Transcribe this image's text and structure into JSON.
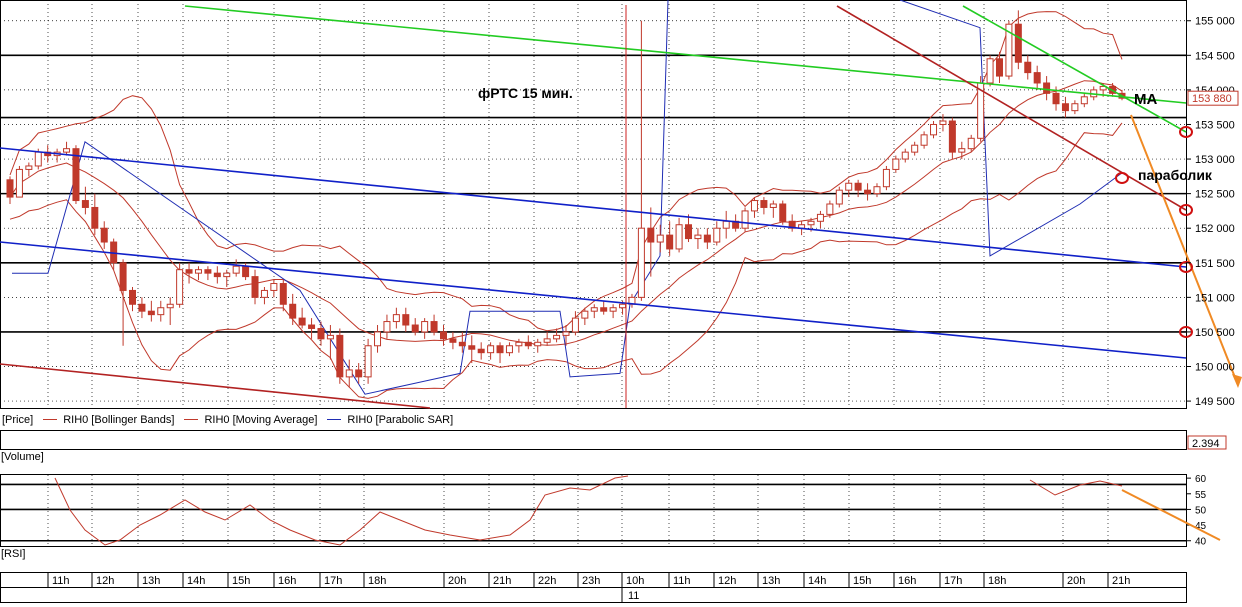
{
  "chart_data": {
    "type": "candlestick",
    "instrument": "RIH0",
    "price_axis": {
      "ticks": [
        "155 000",
        "154 500",
        "154 000",
        "153 500",
        "153 000",
        "152 500",
        "152 000",
        "151 500",
        "151 000",
        "150 500",
        "150 000",
        "149 500"
      ],
      "ylim": [
        149400,
        155300
      ]
    },
    "current_price": "153 880",
    "volume_value": "2.394",
    "rsi_axis": {
      "ticks": [
        "60",
        "55",
        "50",
        "45",
        "40"
      ],
      "ylim": [
        38,
        61
      ]
    },
    "annotations": {
      "title": "фРТС   15 мин.",
      "ma": "МА",
      "parabolic": "параболик"
    },
    "legend": {
      "price": "[Price]",
      "bollinger": "RIH0 [Bollinger Bands]",
      "ma": "RIH0 [Moving Average]",
      "sar": "RIH0 [Parabolic SAR]"
    },
    "panels": {
      "volume": "[Volume]",
      "rsi": "[RSI]"
    },
    "time_axis": {
      "hours": [
        "11h",
        "12h",
        "13h",
        "14h",
        "15h",
        "16h",
        "17h",
        "18h",
        "20h",
        "21h",
        "22h",
        "23h",
        "10h",
        "11h",
        "12h",
        "13h",
        "14h",
        "15h",
        "16h",
        "17h",
        "18h",
        "20h",
        "21h"
      ],
      "day_label": "11"
    },
    "horizontal_levels": [
      154500,
      153600,
      152500,
      151500,
      150500,
      153500
    ],
    "candles": [
      [
        152700,
        152750,
        152350,
        152450
      ],
      [
        152450,
        152900,
        152450,
        152850
      ],
      [
        152850,
        152950,
        152750,
        152900
      ],
      [
        152900,
        153150,
        152850,
        153100
      ],
      [
        153100,
        153200,
        152950,
        153050
      ],
      [
        153050,
        153150,
        152950,
        153100
      ],
      [
        153100,
        153250,
        153050,
        153150
      ],
      [
        153150,
        153200,
        152350,
        152400
      ],
      [
        152400,
        152600,
        152200,
        152300
      ],
      [
        152300,
        152500,
        151900,
        152000
      ],
      [
        152000,
        152100,
        151700,
        151800
      ],
      [
        151800,
        151850,
        151400,
        151500
      ],
      [
        151500,
        151550,
        150300,
        151100
      ],
      [
        151100,
        151150,
        150800,
        150900
      ],
      [
        150900,
        151000,
        150700,
        150800
      ],
      [
        150800,
        150950,
        150650,
        150750
      ],
      [
        150750,
        150950,
        150650,
        150850
      ],
      [
        150850,
        151000,
        150600,
        150900
      ],
      [
        150900,
        151500,
        150850,
        151400
      ],
      [
        151400,
        151500,
        151200,
        151350
      ],
      [
        151350,
        151450,
        151250,
        151400
      ],
      [
        151400,
        151450,
        151250,
        151350
      ],
      [
        151350,
        151450,
        151200,
        151300
      ],
      [
        151300,
        151400,
        151150,
        151350
      ],
      [
        151350,
        151550,
        151300,
        151450
      ],
      [
        151450,
        151500,
        151250,
        151300
      ],
      [
        151300,
        151400,
        150900,
        151000
      ],
      [
        151000,
        151150,
        150900,
        151100
      ],
      [
        151100,
        151250,
        151000,
        151200
      ],
      [
        151200,
        151250,
        150800,
        150900
      ],
      [
        150900,
        151050,
        150600,
        150700
      ],
      [
        150700,
        150850,
        150550,
        150600
      ],
      [
        150600,
        150700,
        150400,
        150550
      ],
      [
        150550,
        150650,
        150300,
        150400
      ],
      [
        150400,
        150600,
        150100,
        150450
      ],
      [
        150450,
        150550,
        149750,
        149850
      ],
      [
        149850,
        150100,
        149700,
        149950
      ],
      [
        149950,
        150050,
        149750,
        149850
      ],
      [
        149850,
        150400,
        149750,
        150300
      ],
      [
        150300,
        150600,
        150200,
        150500
      ],
      [
        150500,
        150750,
        150400,
        150650
      ],
      [
        150650,
        150850,
        150550,
        150750
      ],
      [
        150750,
        150850,
        150500,
        150600
      ],
      [
        150600,
        150700,
        150450,
        150500
      ],
      [
        150500,
        150700,
        150400,
        150650
      ],
      [
        150650,
        150750,
        150450,
        150500
      ],
      [
        150500,
        150600,
        150300,
        150400
      ],
      [
        150400,
        150500,
        150250,
        150350
      ],
      [
        150350,
        150500,
        150200,
        150300
      ],
      [
        150300,
        150450,
        150050,
        150250
      ],
      [
        150250,
        150350,
        150100,
        150200
      ],
      [
        150200,
        150350,
        150100,
        150300
      ],
      [
        150300,
        150350,
        150050,
        150200
      ],
      [
        150200,
        150350,
        150150,
        150300
      ],
      [
        150300,
        150400,
        150200,
        150350
      ],
      [
        150350,
        150450,
        150250,
        150300
      ],
      [
        150300,
        150400,
        150200,
        150350
      ],
      [
        150350,
        150500,
        150300,
        150400
      ],
      [
        150400,
        150550,
        150350,
        150450
      ],
      [
        150450,
        150600,
        150300,
        150500
      ],
      [
        150500,
        150800,
        150450,
        150700
      ],
      [
        150700,
        150850,
        150600,
        150800
      ],
      [
        150800,
        150900,
        150700,
        150850
      ],
      [
        150850,
        150950,
        150750,
        150800
      ],
      [
        150800,
        150900,
        150700,
        150850
      ],
      [
        150850,
        150950,
        150750,
        150900
      ],
      [
        150900,
        151050,
        150850,
        151000
      ],
      [
        151000,
        155000,
        150950,
        152000
      ],
      [
        152000,
        152300,
        151300,
        151800
      ],
      [
        151800,
        152050,
        151650,
        151900
      ],
      [
        151900,
        152100,
        151600,
        151700
      ],
      [
        151700,
        152150,
        151650,
        152050
      ],
      [
        152050,
        152200,
        151800,
        151850
      ],
      [
        151850,
        152000,
        151700,
        151900
      ],
      [
        151900,
        152000,
        151700,
        151800
      ],
      [
        151800,
        152100,
        151750,
        152000
      ],
      [
        152000,
        152250,
        151850,
        152100
      ],
      [
        152100,
        152200,
        151950,
        152000
      ],
      [
        152000,
        152300,
        151950,
        152250
      ],
      [
        152250,
        152450,
        152150,
        152400
      ],
      [
        152400,
        152450,
        152200,
        152300
      ],
      [
        152300,
        152400,
        152150,
        152350
      ],
      [
        152350,
        152400,
        152050,
        152100
      ],
      [
        152100,
        152200,
        151950,
        152000
      ],
      [
        152000,
        152100,
        151900,
        152050
      ],
      [
        152050,
        152150,
        151950,
        152100
      ],
      [
        152100,
        152250,
        152000,
        152200
      ],
      [
        152200,
        152400,
        152150,
        152350
      ],
      [
        152350,
        152600,
        152300,
        152550
      ],
      [
        152550,
        152700,
        152450,
        152650
      ],
      [
        152650,
        152700,
        152450,
        152550
      ],
      [
        152550,
        152650,
        152400,
        152500
      ],
      [
        152500,
        152650,
        152450,
        152600
      ],
      [
        152600,
        152900,
        152550,
        152850
      ],
      [
        152850,
        153050,
        152800,
        153000
      ],
      [
        153000,
        153150,
        152950,
        153100
      ],
      [
        153100,
        153250,
        153050,
        153200
      ],
      [
        153200,
        153400,
        153150,
        153350
      ],
      [
        153350,
        153550,
        153300,
        153500
      ],
      [
        153500,
        153650,
        153400,
        153550
      ],
      [
        153550,
        153600,
        153000,
        153100
      ],
      [
        153100,
        153250,
        153000,
        153150
      ],
      [
        153150,
        153350,
        153100,
        153300
      ],
      [
        153300,
        154200,
        153250,
        154100
      ],
      [
        154100,
        154500,
        154050,
        154450
      ],
      [
        154450,
        154550,
        154100,
        154200
      ],
      [
        154200,
        155000,
        154150,
        154950
      ],
      [
        154950,
        155150,
        154300,
        154400
      ],
      [
        154400,
        154500,
        154150,
        154250
      ],
      [
        154250,
        154350,
        154000,
        154100
      ],
      [
        154100,
        154200,
        153850,
        153950
      ],
      [
        153950,
        154050,
        153700,
        153800
      ],
      [
        153800,
        153900,
        153600,
        153700
      ],
      [
        153700,
        153850,
        153650,
        153800
      ],
      [
        153800,
        153950,
        153750,
        153900
      ],
      [
        153900,
        154050,
        153850,
        154000
      ],
      [
        154000,
        154100,
        153900,
        154050
      ],
      [
        154050,
        154100,
        153900,
        153950
      ],
      [
        153950,
        154000,
        153850,
        153880
      ]
    ],
    "grid": true
  }
}
